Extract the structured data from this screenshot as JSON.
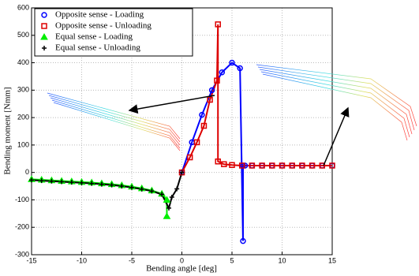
{
  "chart_data": {
    "type": "line",
    "xlabel": "Bending angle [deg]",
    "ylabel": "Bending moment [Nmm]",
    "xlim": [
      -15,
      15
    ],
    "ylim": [
      -300,
      600
    ],
    "xticks": [
      -15,
      -10,
      -5,
      0,
      5,
      10,
      15
    ],
    "yticks": [
      -300,
      -200,
      -100,
      0,
      100,
      200,
      300,
      400,
      500,
      600
    ],
    "grid": true,
    "legend": "upper left",
    "series": [
      {
        "name": "Opposite sense - Loading",
        "color": "#0000ff",
        "marker": "o",
        "x": [
          0,
          1,
          2,
          3,
          4,
          5,
          5.8,
          6.1,
          6.1,
          6.3,
          7,
          8,
          9,
          10,
          11,
          12,
          13,
          14,
          15
        ],
        "values": [
          0,
          110,
          210,
          300,
          365,
          400,
          380,
          -250,
          25,
          25,
          25,
          25,
          25,
          25,
          25,
          25,
          25,
          25,
          25
        ]
      },
      {
        "name": "Opposite sense - Unloading",
        "color": "#dd0000",
        "marker": "s",
        "x": [
          0,
          0.8,
          1.5,
          2.2,
          2.8,
          3.5,
          3.6,
          3.6,
          4.2,
          5,
          6,
          7,
          8,
          9,
          10,
          11,
          12,
          13,
          14,
          15
        ],
        "values": [
          0,
          55,
          110,
          170,
          265,
          335,
          540,
          40,
          30,
          27,
          25,
          25,
          25,
          25,
          25,
          25,
          25,
          25,
          25,
          25
        ]
      },
      {
        "name": "Equal sense - Loading",
        "color": "#00ee00",
        "marker": "^",
        "x": [
          -15,
          -14,
          -13,
          -12,
          -11,
          -10,
          -9,
          -8,
          -7,
          -6,
          -5,
          -4,
          -3,
          -2,
          -1.5,
          -1.5
        ],
        "values": [
          -25,
          -27,
          -29,
          -31,
          -33,
          -35,
          -37,
          -40,
          -43,
          -47,
          -52,
          -58,
          -66,
          -78,
          -100,
          -160
        ]
      },
      {
        "name": "Equal sense - Unloading",
        "color": "#000000",
        "marker": "+",
        "x": [
          -15,
          -14,
          -13,
          -12,
          -11,
          -10,
          -9,
          -8,
          -7,
          -6,
          -5,
          -4,
          -3,
          -2,
          -1.3,
          -1,
          -0.5,
          0
        ],
        "values": [
          -28,
          -30,
          -32,
          -34,
          -36,
          -38,
          -40,
          -43,
          -46,
          -50,
          -55,
          -61,
          -68,
          -80,
          -130,
          -90,
          -60,
          0
        ]
      }
    ]
  }
}
